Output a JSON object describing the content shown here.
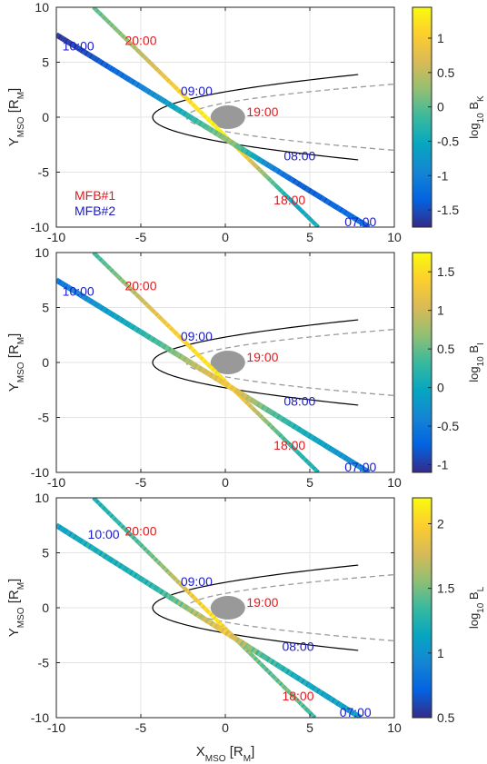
{
  "colors": {
    "mfb1": "#e8161b",
    "mfb2": "#1a1acc",
    "planet": "#999999",
    "bowshock": "#000000",
    "magnetopause": "#9a9a9a",
    "grid": "#e3e3e3"
  },
  "shared": {
    "xlabel_main": "X",
    "xlabel_sub": "MSO",
    "xlabel_unit_open": " [R",
    "xlabel_unit_sub": "M",
    "xlabel_unit_close": "]",
    "ylabel_main": "Y",
    "ylabel_sub": "MSO",
    "ylabel_unit_open": " [R",
    "ylabel_unit_sub": "M",
    "ylabel_unit_close": "]",
    "legend_mfb1": "MFB#1",
    "legend_mfb2": "MFB#2"
  },
  "chart_data": [
    {
      "type": "scatter",
      "xlim": [
        -10,
        10
      ],
      "ylim": [
        -10,
        10
      ],
      "xticks": [
        "-10",
        "-5",
        "0",
        "5",
        "10"
      ],
      "yticks": [
        "10",
        "5",
        "0",
        "-5",
        "-10"
      ],
      "grid": true,
      "legend_placement": "bottom-left",
      "colorbar": {
        "label_main": "log",
        "label_sub": "10",
        "label_var": " B",
        "label_var_sub": "K",
        "range": [
          -1.75,
          1.45
        ],
        "ticks": [
          "1",
          "0.5",
          "0",
          "-0.5",
          "-1",
          "-1.5"
        ],
        "tick_values": [
          1,
          0.5,
          0,
          -0.5,
          -1,
          -1.5
        ]
      },
      "series": [
        {
          "start": [
            -7.8,
            10
          ],
          "end": [
            5.5,
            -10
          ],
          "value_profile": [
            0.0,
            0.2,
            0.5,
            0.9,
            1.2,
            1.4,
            1.0,
            0.1,
            -0.6,
            -0.4
          ],
          "labels": [
            {
              "text": "20:00",
              "x": -5,
              "y": 7
            },
            {
              "text": "19:00",
              "x": 2.2,
              "y": 0.5
            },
            {
              "text": "18:00",
              "x": 3.8,
              "y": -7.5
            }
          ]
        },
        {
          "start": [
            -10,
            7.5
          ],
          "end": [
            8.5,
            -10
          ],
          "value_profile": [
            -1.7,
            -1.5,
            -1.2,
            -0.8,
            -0.2,
            0.3,
            -0.9,
            -1.4,
            -1.3,
            -1.2
          ],
          "labels": [
            {
              "text": "10:00",
              "x": -8.7,
              "y": 6.5
            },
            {
              "text": "09:00",
              "x": -1.7,
              "y": 2.4
            },
            {
              "text": "08:00",
              "x": 4.4,
              "y": -3.5
            },
            {
              "text": "07:00",
              "x": 8.0,
              "y": -9.5
            }
          ]
        }
      ]
    },
    {
      "type": "scatter",
      "xlim": [
        -10,
        10
      ],
      "ylim": [
        -10,
        10
      ],
      "xticks": [
        "-10",
        "-5",
        "0",
        "5",
        "10"
      ],
      "yticks": [
        "10",
        "5",
        "0",
        "-5",
        "-10"
      ],
      "grid": true,
      "colorbar": {
        "label_main": "log",
        "label_sub": "10",
        "label_var": " B",
        "label_var_sub": "I",
        "range": [
          -1.1,
          1.75
        ],
        "ticks": [
          "1.5",
          "1",
          "0.5",
          "0",
          "-0.5",
          "-1"
        ],
        "tick_values": [
          1.5,
          1,
          0.5,
          0,
          -0.5,
          -1
        ]
      },
      "series": [
        {
          "start": [
            -7.8,
            10
          ],
          "end": [
            5.5,
            -10
          ],
          "value_profile": [
            0.3,
            0.6,
            1.0,
            1.3,
            1.5,
            1.6,
            1.2,
            0.6,
            0.2,
            0.1
          ],
          "labels": [
            {
              "text": "20:00",
              "x": -5,
              "y": 7
            },
            {
              "text": "19:00",
              "x": 2.2,
              "y": 0.5
            },
            {
              "text": "18:00",
              "x": 3.8,
              "y": -7.5
            }
          ]
        },
        {
          "start": [
            -10,
            7.5
          ],
          "end": [
            8.5,
            -10
          ],
          "value_profile": [
            -0.6,
            -0.3,
            0.0,
            0.4,
            0.9,
            1.3,
            0.5,
            0.1,
            -0.2,
            -0.4
          ],
          "labels": [
            {
              "text": "10:00",
              "x": -8.7,
              "y": 6.5
            },
            {
              "text": "09:00",
              "x": -1.7,
              "y": 2.4
            },
            {
              "text": "08:00",
              "x": 4.4,
              "y": -3.5
            },
            {
              "text": "07:00",
              "x": 8.0,
              "y": -9.5
            }
          ]
        }
      ]
    },
    {
      "type": "scatter",
      "xlim": [
        -10,
        10
      ],
      "ylim": [
        -10,
        10
      ],
      "xticks": [
        "-10",
        "-5",
        "0",
        "5",
        "10"
      ],
      "yticks": [
        "10",
        "5",
        "0",
        "-5",
        "-10"
      ],
      "grid": true,
      "colorbar": {
        "label_main": "log",
        "label_sub": "10",
        "label_var": " B",
        "label_var_sub": "L",
        "range": [
          0.5,
          2.2
        ],
        "ticks": [
          "2",
          "1.5",
          "1",
          "0.5"
        ],
        "tick_values": [
          2,
          1.5,
          1,
          0.5
        ]
      },
      "series": [
        {
          "start": [
            -7.8,
            10
          ],
          "end": [
            5.3,
            -10
          ],
          "value_profile": [
            1.2,
            1.3,
            1.4,
            1.6,
            1.9,
            2.1,
            1.6,
            1.4,
            1.5,
            1.3
          ],
          "labels": [
            {
              "text": "20:00",
              "x": -5,
              "y": 7
            },
            {
              "text": "19:00",
              "x": 2.2,
              "y": 0.5
            },
            {
              "text": "18:00",
              "x": 4.3,
              "y": -8
            }
          ]
        },
        {
          "start": [
            -10,
            7.5
          ],
          "end": [
            8.0,
            -10
          ],
          "value_profile": [
            1.1,
            1.2,
            1.2,
            1.3,
            1.6,
            1.9,
            1.4,
            1.2,
            1.1,
            1.1
          ],
          "labels": [
            {
              "text": "10:00",
              "x": -7.2,
              "y": 6.7
            },
            {
              "text": "09:00",
              "x": -1.7,
              "y": 2.4
            },
            {
              "text": "08:00",
              "x": 4.3,
              "y": -3.5
            },
            {
              "text": "07:00",
              "x": 7.7,
              "y": -9.5
            }
          ]
        }
      ]
    }
  ]
}
